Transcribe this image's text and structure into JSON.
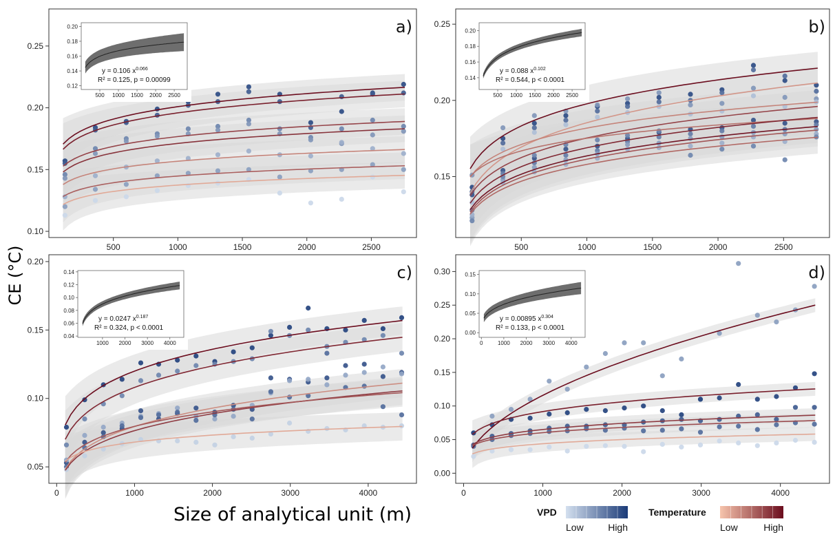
{
  "figure": {
    "ylabel": "CE (°C)",
    "xlabel": "Size of analytical unit (m)"
  },
  "legend": {
    "vpd": {
      "title": "VPD",
      "low": "Low",
      "high": "High",
      "colors": [
        "#d4e0ef",
        "#1b3b78"
      ]
    },
    "temperature": {
      "title": "Temperature",
      "low": "Low",
      "high": "High",
      "colors": [
        "#f6c4ac",
        "#6b0d1e"
      ]
    }
  },
  "chart_data": [
    {
      "type": "scatter",
      "panel": "a)",
      "xlim": [
        0,
        2850
      ],
      "ylim": [
        0.095,
        0.28
      ],
      "xticks": [
        500,
        1000,
        1500,
        2000,
        2500
      ],
      "yticks": [
        0.1,
        0.15,
        0.2,
        0.25
      ],
      "ytick_labels": [
        "0.10",
        "0.15",
        "0.20",
        "0.25"
      ],
      "x": [
        125,
        360,
        600,
        840,
        1080,
        1310,
        1550,
        1790,
        2030,
        2270,
        2510,
        2750
      ],
      "fits": [
        {
          "a": 0.1205,
          "b": 0.074,
          "temp": 1.0
        },
        {
          "a": 0.1175,
          "b": 0.074,
          "temp": 0.9
        },
        {
          "a": 0.112,
          "b": 0.066,
          "temp": 0.7
        },
        {
          "a": 0.1085,
          "b": 0.066,
          "temp": 0.8
        },
        {
          "a": 0.105,
          "b": 0.058,
          "temp": 0.35
        },
        {
          "a": 0.099,
          "b": 0.055,
          "temp": 0.55
        },
        {
          "a": 0.094,
          "b": 0.055,
          "temp": 0.15
        }
      ],
      "points": [
        {
          "v": 0.9,
          "y": [
            0.157,
            0.184,
            0.189,
            0.199,
            0.205,
            0.211,
            0.217,
            0.211,
            0.188,
            0.197,
            0.212,
            0.219
          ]
        },
        {
          "v": 0.8,
          "y": [
            0.155,
            0.182,
            0.188,
            0.194,
            0.202,
            0.205,
            0.213,
            0.205,
            0.184,
            0.209,
            0.211,
            0.212
          ]
        },
        {
          "v": 0.55,
          "y": [
            0.146,
            0.167,
            0.175,
            0.179,
            0.183,
            0.185,
            0.19,
            0.183,
            0.176,
            0.183,
            0.19,
            0.185
          ]
        },
        {
          "v": 0.45,
          "y": [
            0.143,
            0.163,
            0.173,
            0.177,
            0.179,
            0.182,
            0.187,
            0.179,
            0.174,
            0.171,
            0.178,
            0.181
          ]
        },
        {
          "v": 0.3,
          "y": [
            0.128,
            0.145,
            0.152,
            0.157,
            0.159,
            0.162,
            0.165,
            0.162,
            0.161,
            0.172,
            0.167,
            0.163
          ]
        },
        {
          "v": 0.4,
          "y": [
            0.12,
            0.134,
            0.138,
            0.145,
            0.147,
            0.149,
            0.15,
            0.144,
            0.149,
            0.15,
            0.154,
            0.15
          ]
        },
        {
          "v": 0.05,
          "y": [
            0.113,
            0.125,
            0.128,
            0.133,
            0.137,
            0.139,
            0.142,
            0.131,
            0.123,
            0.126,
            0.144,
            0.132
          ]
        }
      ],
      "inset": {
        "xlim": [
          0,
          2850
        ],
        "ylim": [
          0.115,
          0.205
        ],
        "xticks": [
          500,
          1000,
          1500,
          2000,
          2500
        ],
        "yticks": [
          0.12,
          0.14,
          0.16,
          0.18,
          0.2
        ],
        "ytick_labels": [
          "0.12",
          "0.14",
          "0.16",
          "0.18",
          "0.20"
        ],
        "a": 0.106,
        "b": 0.066,
        "band": 0.01,
        "eq1": "y = 0.106 x^0.066",
        "eq2": "R² = 0.125,  p  = 0.00099"
      }
    },
    {
      "type": "scatter",
      "panel": "b)",
      "xlim": [
        0,
        2850
      ],
      "ylim": [
        0.11,
        0.26
      ],
      "xticks": [
        500,
        1000,
        1500,
        2000,
        2500
      ],
      "yticks": [
        0.15,
        0.2,
        0.25
      ],
      "ytick_labels": [
        "0.15",
        "0.20",
        "0.25"
      ],
      "x": [
        125,
        360,
        600,
        840,
        1080,
        1310,
        1550,
        1790,
        2030,
        2270,
        2510,
        2750
      ],
      "fits": [
        {
          "a": 0.0925,
          "b": 0.11,
          "temp": 1.0
        },
        {
          "a": 0.0755,
          "b": 0.13,
          "temp": 0.25
        },
        {
          "a": 0.082,
          "b": 0.11,
          "temp": 0.7
        },
        {
          "a": 0.099,
          "b": 0.088,
          "temp": 0.35
        },
        {
          "a": 0.108,
          "b": 0.07,
          "temp": 0.45
        },
        {
          "a": 0.079,
          "b": 0.11,
          "temp": 0.85
        },
        {
          "a": 0.0765,
          "b": 0.11,
          "temp": 0.95
        },
        {
          "a": 0.0755,
          "b": 0.11,
          "temp": 0.6
        },
        {
          "a": 0.0765,
          "b": 0.105,
          "temp": 0.5
        }
      ],
      "points": [
        {
          "v": 0.9,
          "y": [
            0.143,
            0.175,
            0.185,
            0.19,
            0.196,
            0.198,
            0.202,
            0.204,
            0.207,
            0.223,
            0.213,
            0.21
          ]
        },
        {
          "v": 0.7,
          "y": [
            0.14,
            0.172,
            0.182,
            0.187,
            0.193,
            0.196,
            0.199,
            0.2,
            0.205,
            0.22,
            0.216,
            0.206
          ]
        },
        {
          "v": 0.45,
          "y": [
            0.151,
            0.182,
            0.19,
            0.193,
            0.197,
            0.201,
            0.205,
            0.197,
            0.198,
            0.208,
            0.202,
            0.201
          ]
        },
        {
          "v": 0.2,
          "y": [
            0.133,
            0.168,
            0.179,
            0.184,
            0.189,
            0.192,
            0.196,
            0.191,
            0.193,
            0.203,
            0.196,
            0.199
          ]
        },
        {
          "v": 0.85,
          "y": [
            0.138,
            0.154,
            0.162,
            0.168,
            0.17,
            0.175,
            0.179,
            0.181,
            0.182,
            0.187,
            0.185,
            0.186
          ]
        },
        {
          "v": 0.6,
          "y": [
            0.128,
            0.152,
            0.159,
            0.164,
            0.167,
            0.173,
            0.176,
            0.178,
            0.18,
            0.183,
            0.181,
            0.184
          ]
        },
        {
          "v": 0.4,
          "y": [
            0.123,
            0.148,
            0.156,
            0.161,
            0.165,
            0.171,
            0.172,
            0.175,
            0.176,
            0.179,
            0.178,
            0.181
          ]
        },
        {
          "v": 0.3,
          "y": [
            0.125,
            0.146,
            0.153,
            0.158,
            0.162,
            0.168,
            0.169,
            0.17,
            0.172,
            0.176,
            0.173,
            0.178
          ]
        },
        {
          "v": 0.55,
          "y": [
            0.121,
            0.15,
            0.164,
            0.171,
            0.174,
            0.177,
            0.18,
            0.164,
            0.168,
            0.17,
            0.161,
            0.176
          ]
        }
      ],
      "inset": {
        "xlim": [
          0,
          2850
        ],
        "ylim": [
          0.125,
          0.21
        ],
        "xticks": [
          500,
          1000,
          1500,
          2000,
          2500
        ],
        "yticks": [
          0.14,
          0.16,
          0.18,
          0.2
        ],
        "ytick_labels": [
          "0.14",
          "0.16",
          "0.18",
          "0.20"
        ],
        "a": 0.088,
        "b": 0.102,
        "band": 0.004,
        "eq1": "y = 0.088 x^0.102",
        "eq2": "R² = 0.544,  p  < 0.0001"
      }
    },
    {
      "type": "scatter",
      "panel": "c)",
      "xlim": [
        -100,
        4620
      ],
      "ylim": [
        0.038,
        0.205
      ],
      "xticks": [
        0,
        1000,
        2000,
        3000,
        4000
      ],
      "yticks": [
        0.05,
        0.1,
        0.15,
        0.2
      ],
      "ytick_labels": [
        "0.05",
        "0.10",
        "0.15",
        "0.20"
      ],
      "x": [
        125,
        360,
        600,
        840,
        1080,
        1310,
        1550,
        1790,
        2030,
        2270,
        2510,
        2750,
        2990,
        3230,
        3470,
        3710,
        3950,
        4190,
        4430
      ],
      "fits": [
        {
          "a": 0.0346,
          "b": 0.18,
          "temp": 1.0
        },
        {
          "a": 0.0279,
          "b": 0.196,
          "temp": 0.85
        },
        {
          "a": 0.0168,
          "b": 0.225,
          "temp": 0.3
        },
        {
          "a": 0.0172,
          "b": 0.216,
          "temp": 0.75
        },
        {
          "a": 0.0228,
          "b": 0.181,
          "temp": 0.6
        },
        {
          "a": 0.0332,
          "b": 0.104,
          "temp": 0.15
        }
      ],
      "points": [
        {
          "v": 0.95,
          "y": [
            0.079,
            0.099,
            0.11,
            0.114,
            0.126,
            0.125,
            0.128,
            0.131,
            0.127,
            0.134,
            0.137,
            0.146,
            0.152,
            0.166,
            0.151,
            0.15,
            0.157,
            0.151,
            0.159
          ]
        },
        {
          "v": 0.55,
          "y": [
            0.066,
            0.085,
            0.096,
            0.102,
            0.113,
            0.117,
            0.12,
            0.124,
            0.125,
            0.127,
            0.129,
            0.149,
            0.146,
            0.15,
            0.138,
            0.141,
            0.143,
            0.146,
            0.133
          ]
        },
        {
          "v": 0.85,
          "y": [
            0.053,
            0.068,
            0.075,
            0.078,
            0.091,
            0.085,
            0.089,
            0.093,
            0.09,
            0.095,
            0.092,
            0.115,
            0.114,
            0.112,
            0.115,
            0.124,
            0.125,
            0.116,
            0.119
          ]
        },
        {
          "v": 0.35,
          "y": [
            0.055,
            0.073,
            0.079,
            0.082,
            0.087,
            0.089,
            0.093,
            0.087,
            0.085,
            0.087,
            0.095,
            0.104,
            0.113,
            0.114,
            0.11,
            0.117,
            0.119,
            0.123,
            0.118
          ]
        },
        {
          "v": 0.7,
          "y": [
            0.05,
            0.064,
            0.072,
            0.08,
            0.086,
            0.088,
            0.09,
            0.084,
            0.088,
            0.092,
            0.085,
            0.105,
            0.101,
            0.102,
            0.133,
            0.108,
            0.109,
            0.094,
            0.088
          ]
        },
        {
          "v": 0.1,
          "y": [
            0.048,
            0.058,
            0.063,
            0.067,
            0.07,
            0.069,
            0.069,
            0.068,
            0.066,
            0.072,
            0.071,
            0.074,
            0.082,
            0.076,
            0.078,
            0.077,
            0.08,
            0.079,
            0.08
          ]
        }
      ],
      "inset": {
        "xlim": [
          -100,
          4620
        ],
        "ylim": [
          0.038,
          0.142
        ],
        "xticks": [
          1000,
          2000,
          3000,
          4000
        ],
        "yticks": [
          0.04,
          0.06,
          0.08,
          0.1,
          0.12,
          0.14
        ],
        "ytick_labels": [
          "0.04",
          "0.06",
          "0.08",
          "0.10",
          "0.12",
          "0.14"
        ],
        "a": 0.0247,
        "b": 0.187,
        "band": 0.005,
        "eq1": "y = 0.0247 x^0.187",
        "eq2": "R² = 0.324,  p  < 0.0001"
      }
    },
    {
      "type": "scatter",
      "panel": "d)",
      "xlim": [
        -100,
        4620
      ],
      "ylim": [
        -0.015,
        0.325
      ],
      "xticks": [
        0,
        1000,
        2000,
        3000,
        4000
      ],
      "yticks": [
        0.0,
        0.05,
        0.1,
        0.15,
        0.2,
        0.25,
        0.3
      ],
      "ytick_labels": [
        "0.00",
        "0.05",
        "0.10",
        "0.15",
        "0.20",
        "0.25",
        "0.30"
      ],
      "x": [
        125,
        360,
        600,
        840,
        1080,
        1310,
        1550,
        1790,
        2030,
        2270,
        2510,
        2750,
        2990,
        3230,
        3470,
        3710,
        3950,
        4190,
        4430
      ],
      "fits": [
        {
          "a": 0.00328,
          "b": 0.516,
          "temp": 1.0
        },
        {
          "a": 0.0215,
          "b": 0.21,
          "temp": 0.9
        },
        {
          "a": 0.0175,
          "b": 0.19,
          "temp": 0.75
        },
        {
          "a": 0.018,
          "b": 0.175,
          "temp": 0.65
        },
        {
          "a": 0.0118,
          "b": 0.19,
          "temp": 0.15
        }
      ],
      "points": [
        {
          "v": 0.4,
          "y": [
            0.06,
            0.085,
            0.095,
            0.11,
            0.137,
            0.125,
            0.158,
            0.178,
            0.194,
            0.194,
            0.145,
            0.17,
            0.11,
            0.208,
            0.312,
            0.235,
            0.225,
            0.243,
            0.278
          ]
        },
        {
          "v": 0.95,
          "y": [
            0.06,
            0.072,
            0.08,
            0.082,
            0.088,
            0.09,
            0.095,
            0.093,
            0.097,
            0.1,
            0.093,
            0.087,
            0.11,
            0.112,
            0.132,
            0.11,
            0.114,
            0.127,
            0.148
          ]
        },
        {
          "v": 0.8,
          "y": [
            0.042,
            0.055,
            0.059,
            0.063,
            0.067,
            0.07,
            0.07,
            0.072,
            0.072,
            0.076,
            0.078,
            0.08,
            0.078,
            0.08,
            0.085,
            0.087,
            0.08,
            0.098,
            0.098
          ]
        },
        {
          "v": 0.7,
          "y": [
            0.04,
            0.05,
            0.056,
            0.059,
            0.062,
            0.063,
            0.066,
            0.064,
            0.067,
            0.063,
            0.064,
            0.066,
            0.061,
            0.069,
            0.07,
            0.065,
            0.072,
            0.075,
            0.073
          ]
        },
        {
          "v": 0.05,
          "y": [
            0.025,
            0.033,
            0.035,
            0.035,
            0.039,
            0.033,
            0.04,
            0.041,
            0.04,
            0.032,
            0.043,
            0.039,
            0.042,
            0.048,
            0.045,
            0.041,
            0.045,
            0.049,
            0.046
          ]
        }
      ],
      "inset": {
        "xlim": [
          -100,
          4620
        ],
        "ylim": [
          -0.012,
          0.16
        ],
        "xticks": [
          0,
          1000,
          2000,
          3000,
          4000
        ],
        "yticks": [
          0.0,
          0.05,
          0.1,
          0.15
        ],
        "ytick_labels": [
          "0.00",
          "0.05",
          "0.10",
          "0.15"
        ],
        "a": 0.00895,
        "b": 0.304,
        "band": 0.013,
        "eq1": "y = 0.00895 x^0.304",
        "eq2": "R² = 0.133,  p  < 0.0001"
      }
    }
  ]
}
